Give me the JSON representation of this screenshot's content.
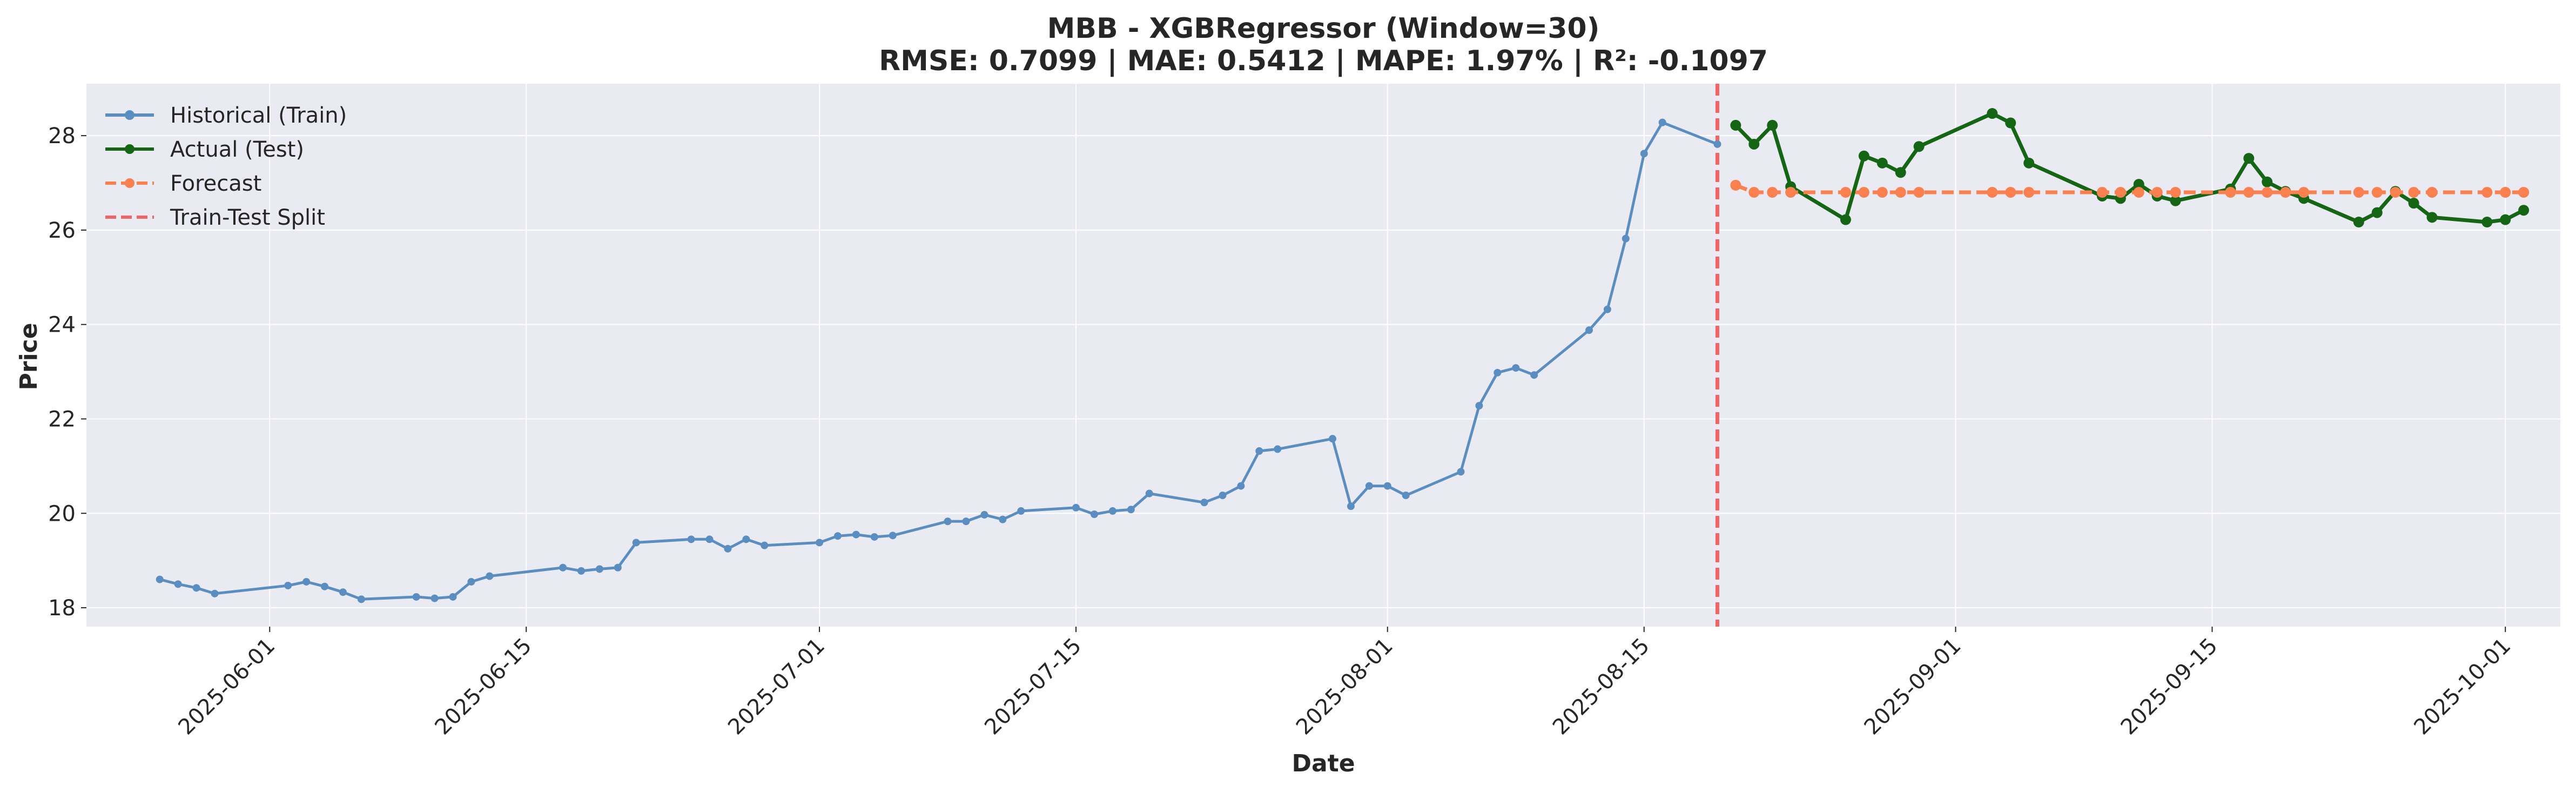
{
  "chart_data": {
    "type": "line",
    "title": "MBB - XGBRegressor (Window=30)",
    "subtitle": "RMSE: 0.7099 | MAE: 0.5412 | MAPE: 1.97% | R²: -0.1097",
    "xlabel": "Date",
    "ylabel": "Price",
    "xlim": [
      "2025-05-22",
      "2025-10-04"
    ],
    "ylim": [
      17.6,
      29.1
    ],
    "x_ticks": [
      "2025-06-01",
      "2025-06-15",
      "2025-07-01",
      "2025-07-15",
      "2025-08-01",
      "2025-08-15",
      "2025-09-01",
      "2025-09-15",
      "2025-10-01"
    ],
    "y_ticks": [
      18,
      20,
      22,
      24,
      26,
      28
    ],
    "grid": true,
    "legend_position": "top-left",
    "split_date": "2025-08-19",
    "series": [
      {
        "name": "Historical (Train)",
        "color": "#5b8ec0",
        "style": "solid",
        "points": [
          [
            "2025-05-26",
            18.6
          ],
          [
            "2025-05-27",
            18.5
          ],
          [
            "2025-05-28",
            18.42
          ],
          [
            "2025-05-29",
            18.3
          ],
          [
            "2025-06-02",
            18.47
          ],
          [
            "2025-06-03",
            18.55
          ],
          [
            "2025-06-04",
            18.45
          ],
          [
            "2025-06-05",
            18.33
          ],
          [
            "2025-06-06",
            18.18
          ],
          [
            "2025-06-09",
            18.23
          ],
          [
            "2025-06-10",
            18.2
          ],
          [
            "2025-06-11",
            18.23
          ],
          [
            "2025-06-12",
            18.55
          ],
          [
            "2025-06-13",
            18.67
          ],
          [
            "2025-06-17",
            18.85
          ],
          [
            "2025-06-18",
            18.78
          ],
          [
            "2025-06-19",
            18.82
          ],
          [
            "2025-06-20",
            18.85
          ],
          [
            "2025-06-21",
            19.38
          ],
          [
            "2025-06-24",
            19.45
          ],
          [
            "2025-06-25",
            19.45
          ],
          [
            "2025-06-26",
            19.25
          ],
          [
            "2025-06-27",
            19.45
          ],
          [
            "2025-06-28",
            19.32
          ],
          [
            "2025-07-01",
            19.38
          ],
          [
            "2025-07-02",
            19.52
          ],
          [
            "2025-07-03",
            19.55
          ],
          [
            "2025-07-04",
            19.5
          ],
          [
            "2025-07-05",
            19.53
          ],
          [
            "2025-07-08",
            19.83
          ],
          [
            "2025-07-09",
            19.83
          ],
          [
            "2025-07-10",
            19.97
          ],
          [
            "2025-07-11",
            19.87
          ],
          [
            "2025-07-12",
            20.05
          ],
          [
            "2025-07-15",
            20.12
          ],
          [
            "2025-07-16",
            19.98
          ],
          [
            "2025-07-17",
            20.05
          ],
          [
            "2025-07-18",
            20.08
          ],
          [
            "2025-07-19",
            20.42
          ],
          [
            "2025-07-22",
            20.23
          ],
          [
            "2025-07-23",
            20.38
          ],
          [
            "2025-07-24",
            20.58
          ],
          [
            "2025-07-25",
            21.32
          ],
          [
            "2025-07-26",
            21.36
          ],
          [
            "2025-07-29",
            21.58
          ],
          [
            "2025-07-30",
            20.15
          ],
          [
            "2025-07-31",
            20.58
          ],
          [
            "2025-08-01",
            20.58
          ],
          [
            "2025-08-02",
            20.38
          ],
          [
            "2025-08-05",
            20.88
          ],
          [
            "2025-08-06",
            22.28
          ],
          [
            "2025-08-07",
            22.98
          ],
          [
            "2025-08-08",
            23.08
          ],
          [
            "2025-08-09",
            22.93
          ],
          [
            "2025-08-12",
            23.88
          ],
          [
            "2025-08-13",
            24.32
          ],
          [
            "2025-08-14",
            25.82
          ],
          [
            "2025-08-15",
            27.62
          ],
          [
            "2025-08-16",
            28.28
          ],
          [
            "2025-08-19",
            27.82
          ]
        ]
      },
      {
        "name": "Actual (Test)",
        "color": "#146614",
        "style": "solid",
        "points": [
          [
            "2025-08-20",
            28.22
          ],
          [
            "2025-08-21",
            27.82
          ],
          [
            "2025-08-22",
            28.22
          ],
          [
            "2025-08-23",
            26.92
          ],
          [
            "2025-08-26",
            26.22
          ],
          [
            "2025-08-27",
            27.57
          ],
          [
            "2025-08-28",
            27.42
          ],
          [
            "2025-08-29",
            27.22
          ],
          [
            "2025-08-30",
            27.77
          ],
          [
            "2025-09-03",
            28.47
          ],
          [
            "2025-09-04",
            28.27
          ],
          [
            "2025-09-05",
            27.42
          ],
          [
            "2025-09-09",
            26.72
          ],
          [
            "2025-09-10",
            26.67
          ],
          [
            "2025-09-11",
            26.97
          ],
          [
            "2025-09-12",
            26.72
          ],
          [
            "2025-09-13",
            26.62
          ],
          [
            "2025-09-16",
            26.87
          ],
          [
            "2025-09-17",
            27.52
          ],
          [
            "2025-09-18",
            27.02
          ],
          [
            "2025-09-19",
            26.82
          ],
          [
            "2025-09-20",
            26.67
          ],
          [
            "2025-09-23",
            26.17
          ],
          [
            "2025-09-24",
            26.37
          ],
          [
            "2025-09-25",
            26.82
          ],
          [
            "2025-09-26",
            26.57
          ],
          [
            "2025-09-27",
            26.27
          ],
          [
            "2025-09-30",
            26.17
          ],
          [
            "2025-10-01",
            26.22
          ],
          [
            "2025-10-02",
            26.42
          ]
        ]
      },
      {
        "name": "Forecast",
        "color": "#fa8050",
        "style": "dashed",
        "points": [
          [
            "2025-08-20",
            26.95
          ],
          [
            "2025-08-21",
            26.8
          ],
          [
            "2025-08-22",
            26.8
          ],
          [
            "2025-08-23",
            26.8
          ],
          [
            "2025-08-26",
            26.8
          ],
          [
            "2025-08-27",
            26.8
          ],
          [
            "2025-08-28",
            26.8
          ],
          [
            "2025-08-29",
            26.8
          ],
          [
            "2025-08-30",
            26.8
          ],
          [
            "2025-09-03",
            26.8
          ],
          [
            "2025-09-04",
            26.8
          ],
          [
            "2025-09-05",
            26.8
          ],
          [
            "2025-09-09",
            26.8
          ],
          [
            "2025-09-10",
            26.8
          ],
          [
            "2025-09-11",
            26.8
          ],
          [
            "2025-09-12",
            26.8
          ],
          [
            "2025-09-13",
            26.8
          ],
          [
            "2025-09-16",
            26.8
          ],
          [
            "2025-09-17",
            26.8
          ],
          [
            "2025-09-18",
            26.8
          ],
          [
            "2025-09-19",
            26.8
          ],
          [
            "2025-09-20",
            26.8
          ],
          [
            "2025-09-23",
            26.8
          ],
          [
            "2025-09-24",
            26.8
          ],
          [
            "2025-09-25",
            26.8
          ],
          [
            "2025-09-26",
            26.8
          ],
          [
            "2025-09-27",
            26.8
          ],
          [
            "2025-09-30",
            26.8
          ],
          [
            "2025-10-01",
            26.8
          ],
          [
            "2025-10-02",
            26.8
          ]
        ]
      }
    ],
    "vlines": [
      {
        "name": "Train-Test Split",
        "x": "2025-08-19",
        "color": "#f06464",
        "style": "dashed"
      }
    ]
  }
}
